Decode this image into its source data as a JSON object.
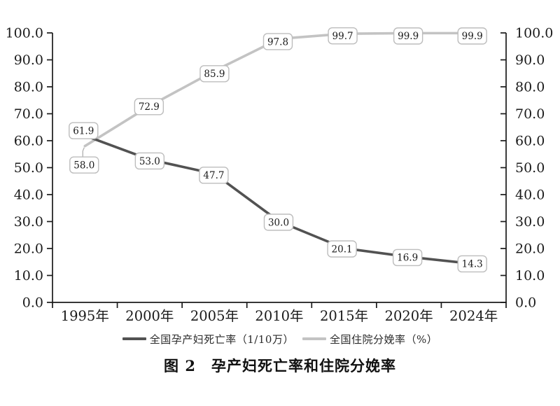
{
  "figure": {
    "caption": "图 2　孕产妇死亡率和住院分娩率"
  },
  "legend": {
    "items": [
      {
        "label": "全国孕产妇死亡率（1/10万）",
        "color": "#525252"
      },
      {
        "label": "全国住院分娩率（%）",
        "color": "#c3c3c3"
      }
    ]
  },
  "chart_data": {
    "type": "line",
    "title": "图 2　孕产妇死亡率和住院分娩率",
    "categories": [
      "1995年",
      "2000年",
      "2005年",
      "2010年",
      "2015年",
      "2020年",
      "2024年"
    ],
    "series": [
      {
        "name": "全国孕产妇死亡率（1/10万）",
        "color": "#525252",
        "values": [
          61.9,
          53.0,
          47.7,
          30.0,
          20.1,
          16.9,
          14.3
        ],
        "labels": [
          "61.9",
          "53.0",
          "47.7",
          "30.0",
          "20.1",
          "16.9",
          "14.3"
        ]
      },
      {
        "name": "全国住院分娩率（%）",
        "color": "#c3c3c3",
        "values": [
          58.0,
          72.9,
          85.9,
          97.8,
          99.7,
          99.9,
          99.9
        ],
        "labels": [
          "58.0",
          "72.9",
          "85.9",
          "97.8",
          "99.7",
          "99.9",
          "99.9"
        ]
      }
    ],
    "y_axis": {
      "min": 0,
      "max": 100,
      "step": 10,
      "tick_labels": [
        "0.0",
        "10.0",
        "20.0",
        "30.0",
        "40.0",
        "50.0",
        "60.0",
        "70.0",
        "80.0",
        "90.0",
        "100.0"
      ],
      "sides": [
        "left",
        "right"
      ]
    },
    "xlabel": "",
    "ylabel": "",
    "grid": false,
    "legend_position": "bottom"
  }
}
